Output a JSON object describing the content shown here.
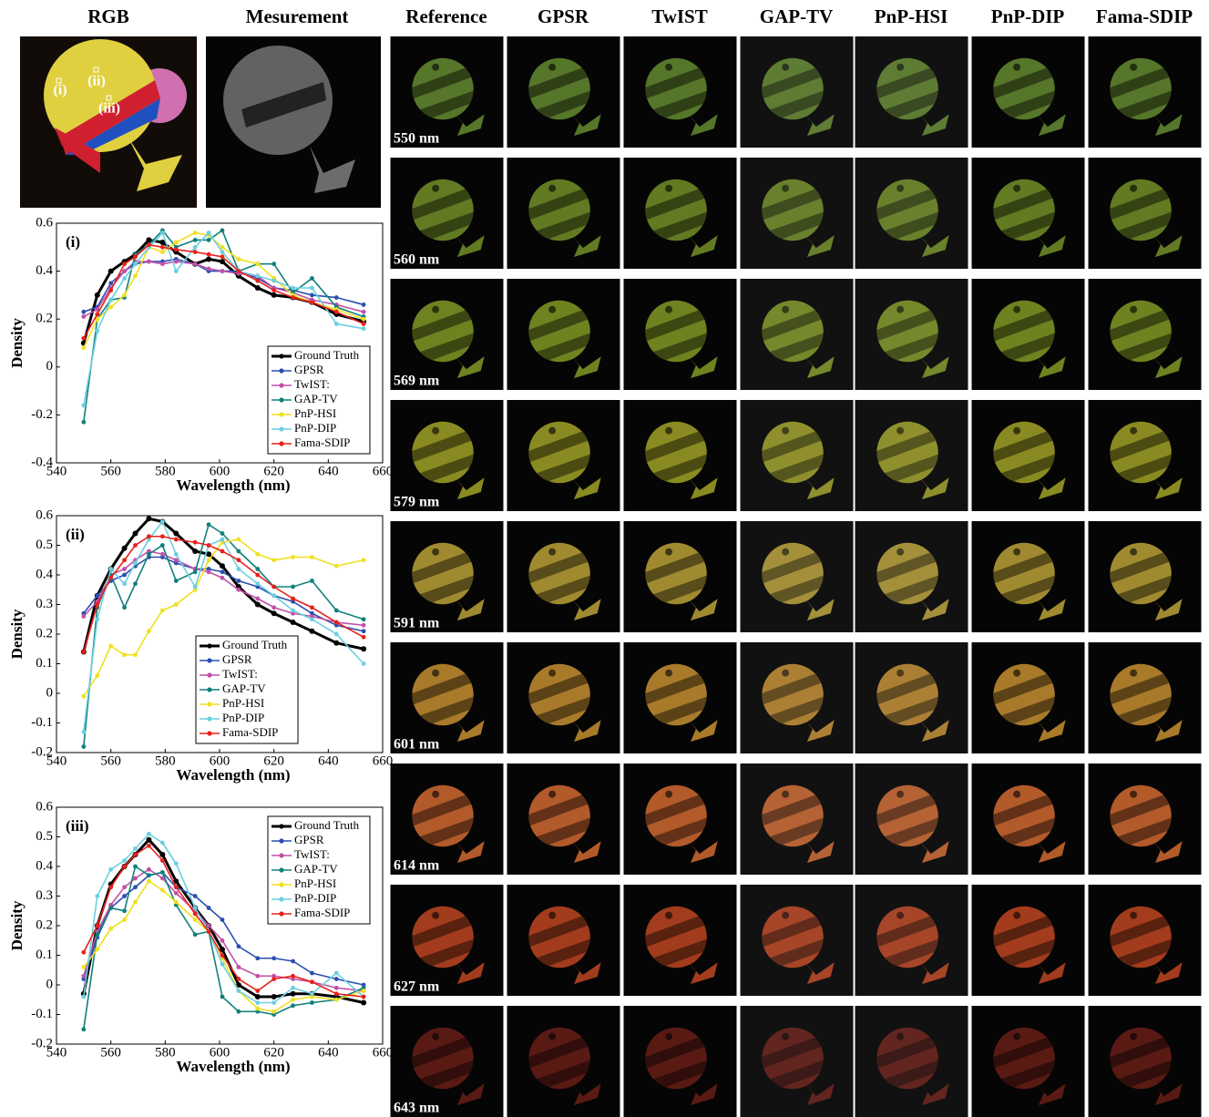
{
  "headers": {
    "rgb": "RGB",
    "measurement": "Mesurement",
    "methods": [
      "Reference",
      "GPSR",
      "TwIST",
      "GAP-TV",
      "PnP-HSI",
      "PnP-DIP",
      "Fama-SDIP"
    ]
  },
  "markers": [
    "(i)",
    "(ii)",
    "(iii)"
  ],
  "rows": [
    {
      "label": "550 nm",
      "color": "#56762a"
    },
    {
      "label": "560 nm",
      "color": "#627a22"
    },
    {
      "label": "569 nm",
      "color": "#6e8220"
    },
    {
      "label": "579 nm",
      "color": "#8a8a22"
    },
    {
      "label": "591 nm",
      "color": "#a08a30"
    },
    {
      "label": "601 nm",
      "color": "#a87a2a"
    },
    {
      "label": "614 nm",
      "color": "#b25a2a"
    },
    {
      "label": "627 nm",
      "color": "#a23c1c"
    },
    {
      "label": "643 nm",
      "color": "#5a1a14"
    }
  ],
  "chart_data": [
    {
      "type": "line",
      "label": "(i)",
      "xlabel": "Wavelength (nm)",
      "ylabel": "Density",
      "legend": "lower right",
      "x": [
        550,
        555,
        560,
        565,
        569,
        574,
        579,
        584,
        591,
        596,
        601,
        607,
        614,
        620,
        627,
        634,
        643,
        653
      ],
      "xlim": [
        540,
        660
      ],
      "xticks": [
        540,
        560,
        580,
        600,
        620,
        640,
        660
      ],
      "ylim": [
        -0.4,
        0.6
      ],
      "yticks": [
        -0.4,
        -0.2,
        0,
        0.2,
        0.4,
        0.6
      ],
      "series": [
        {
          "name": "Ground Truth",
          "color": "#000000",
          "values": [
            0.1,
            0.3,
            0.4,
            0.44,
            0.47,
            0.53,
            0.52,
            0.48,
            0.43,
            0.45,
            0.44,
            0.38,
            0.33,
            0.3,
            0.29,
            0.27,
            0.22,
            0.19
          ]
        },
        {
          "name": "GPSR",
          "color": "#2b4fb0",
          "values": [
            0.23,
            0.25,
            0.35,
            0.4,
            0.43,
            0.44,
            0.44,
            0.45,
            0.43,
            0.4,
            0.4,
            0.4,
            0.37,
            0.33,
            0.32,
            0.3,
            0.29,
            0.26
          ]
        },
        {
          "name": "TwIST:",
          "color": "#c050a8",
          "values": [
            0.21,
            0.24,
            0.33,
            0.4,
            0.44,
            0.44,
            0.43,
            0.44,
            0.43,
            0.41,
            0.4,
            0.39,
            0.38,
            0.33,
            0.31,
            0.28,
            0.26,
            0.23
          ]
        },
        {
          "name": "GAP-TV",
          "color": "#11807a",
          "values": [
            -0.23,
            0.2,
            0.28,
            0.29,
            0.47,
            0.51,
            0.57,
            0.5,
            0.53,
            0.53,
            0.57,
            0.4,
            0.43,
            0.43,
            0.31,
            0.37,
            0.25,
            0.21
          ]
        },
        {
          "name": "PnP-HSI",
          "color": "#f0e020",
          "values": [
            0.08,
            0.2,
            0.25,
            0.3,
            0.38,
            0.5,
            0.48,
            0.52,
            0.56,
            0.55,
            0.5,
            0.45,
            0.43,
            0.37,
            0.3,
            0.27,
            0.24,
            0.2
          ]
        },
        {
          "name": "PnP-DIP",
          "color": "#6ccfe0",
          "values": [
            -0.16,
            0.15,
            0.28,
            0.37,
            0.43,
            0.5,
            0.56,
            0.4,
            0.5,
            0.56,
            0.48,
            0.4,
            0.38,
            0.36,
            0.33,
            0.33,
            0.18,
            0.16
          ]
        },
        {
          "name": "Fama-SDIP",
          "color": "#e8201c",
          "values": [
            0.12,
            0.22,
            0.32,
            0.43,
            0.46,
            0.51,
            0.5,
            0.49,
            0.48,
            0.47,
            0.46,
            0.4,
            0.36,
            0.32,
            0.29,
            0.27,
            0.23,
            0.18
          ]
        }
      ]
    },
    {
      "type": "line",
      "label": "(ii)",
      "xlabel": "Wavelength (nm)",
      "ylabel": "Density",
      "legend": "lower center",
      "x": [
        550,
        555,
        560,
        565,
        569,
        574,
        579,
        584,
        591,
        596,
        601,
        607,
        614,
        620,
        627,
        634,
        643,
        653
      ],
      "xlim": [
        540,
        660
      ],
      "xticks": [
        540,
        560,
        580,
        600,
        620,
        640,
        660
      ],
      "ylim": [
        -0.2,
        0.6
      ],
      "yticks": [
        -0.2,
        -0.1,
        0,
        0.1,
        0.2,
        0.3,
        0.4,
        0.5,
        0.6
      ],
      "series": [
        {
          "name": "Ground Truth",
          "color": "#000000",
          "values": [
            0.14,
            0.33,
            0.42,
            0.49,
            0.54,
            0.59,
            0.58,
            0.54,
            0.48,
            0.47,
            0.43,
            0.36,
            0.3,
            0.27,
            0.24,
            0.21,
            0.17,
            0.15
          ]
        },
        {
          "name": "GPSR",
          "color": "#2b4fb0",
          "values": [
            0.27,
            0.33,
            0.38,
            0.4,
            0.43,
            0.46,
            0.46,
            0.44,
            0.42,
            0.42,
            0.41,
            0.38,
            0.36,
            0.33,
            0.31,
            0.27,
            0.23,
            0.21
          ]
        },
        {
          "name": "TwIST:",
          "color": "#c050a8",
          "values": [
            0.26,
            0.31,
            0.4,
            0.42,
            0.45,
            0.48,
            0.47,
            0.45,
            0.42,
            0.41,
            0.39,
            0.35,
            0.32,
            0.29,
            0.27,
            0.26,
            0.24,
            0.23
          ]
        },
        {
          "name": "GAP-TV",
          "color": "#11807a",
          "values": [
            -0.18,
            0.29,
            0.4,
            0.29,
            0.37,
            0.47,
            0.5,
            0.38,
            0.41,
            0.57,
            0.54,
            0.48,
            0.42,
            0.36,
            0.36,
            0.38,
            0.28,
            0.25
          ]
        },
        {
          "name": "PnP-HSI",
          "color": "#f0e020",
          "values": [
            -0.01,
            0.06,
            0.16,
            0.13,
            0.13,
            0.21,
            0.28,
            0.3,
            0.35,
            0.45,
            0.51,
            0.52,
            0.47,
            0.45,
            0.46,
            0.46,
            0.43,
            0.45
          ]
        },
        {
          "name": "PnP-DIP",
          "color": "#6ccfe0",
          "values": [
            -0.13,
            0.25,
            0.42,
            0.37,
            0.44,
            0.52,
            0.58,
            0.47,
            0.36,
            0.5,
            0.52,
            0.42,
            0.37,
            0.33,
            0.28,
            0.25,
            0.2,
            0.1
          ]
        },
        {
          "name": "Fama-SDIP",
          "color": "#e8201c",
          "values": [
            0.14,
            0.3,
            0.39,
            0.45,
            0.5,
            0.53,
            0.53,
            0.52,
            0.51,
            0.5,
            0.48,
            0.45,
            0.4,
            0.36,
            0.32,
            0.29,
            0.24,
            0.19
          ]
        }
      ]
    },
    {
      "type": "line",
      "label": "(iii)",
      "xlabel": "Wavelength (nm)",
      "ylabel": "Density",
      "legend": "upper right",
      "x": [
        550,
        555,
        560,
        565,
        569,
        574,
        579,
        584,
        591,
        596,
        601,
        607,
        614,
        620,
        627,
        634,
        643,
        653
      ],
      "xlim": [
        540,
        660
      ],
      "xticks": [
        540,
        560,
        580,
        600,
        620,
        640,
        660
      ],
      "ylim": [
        -0.2,
        0.6
      ],
      "yticks": [
        -0.2,
        -0.1,
        0,
        0.1,
        0.2,
        0.3,
        0.4,
        0.5,
        0.6
      ],
      "series": [
        {
          "name": "Ground Truth",
          "color": "#000000",
          "values": [
            -0.03,
            0.2,
            0.34,
            0.4,
            0.44,
            0.49,
            0.44,
            0.35,
            0.26,
            0.2,
            0.12,
            0.0,
            -0.04,
            -0.04,
            -0.03,
            -0.03,
            -0.04,
            -0.06
          ]
        },
        {
          "name": "GPSR",
          "color": "#2b4fb0",
          "values": [
            0.02,
            0.16,
            0.26,
            0.3,
            0.33,
            0.37,
            0.38,
            0.33,
            0.3,
            0.26,
            0.22,
            0.13,
            0.09,
            0.09,
            0.08,
            0.04,
            0.02,
            0.0
          ]
        },
        {
          "name": "TwIST:",
          "color": "#c050a8",
          "values": [
            0.03,
            0.18,
            0.27,
            0.33,
            0.36,
            0.39,
            0.36,
            0.31,
            0.25,
            0.2,
            0.15,
            0.06,
            0.03,
            0.03,
            0.02,
            0.01,
            -0.01,
            -0.02
          ]
        },
        {
          "name": "GAP-TV",
          "color": "#11807a",
          "values": [
            -0.15,
            0.17,
            0.26,
            0.25,
            0.4,
            0.37,
            0.38,
            0.27,
            0.17,
            0.18,
            -0.04,
            -0.09,
            -0.09,
            -0.1,
            -0.07,
            -0.06,
            -0.05,
            -0.01
          ]
        },
        {
          "name": "PnP-HSI",
          "color": "#f0e020",
          "values": [
            0.06,
            0.12,
            0.19,
            0.22,
            0.28,
            0.35,
            0.32,
            0.28,
            0.22,
            0.18,
            0.09,
            -0.02,
            -0.08,
            -0.09,
            -0.05,
            -0.04,
            -0.05,
            -0.02
          ]
        },
        {
          "name": "PnP-DIP",
          "color": "#6ccfe0",
          "values": [
            -0.04,
            0.3,
            0.39,
            0.42,
            0.46,
            0.51,
            0.48,
            0.41,
            0.26,
            0.18,
            0.07,
            -0.02,
            -0.06,
            -0.06,
            -0.01,
            -0.03,
            0.04,
            -0.04
          ]
        },
        {
          "name": "Fama-SDIP",
          "color": "#e8201c",
          "values": [
            0.11,
            0.2,
            0.33,
            0.4,
            0.44,
            0.47,
            0.42,
            0.33,
            0.24,
            0.18,
            0.1,
            0.02,
            -0.02,
            0.02,
            0.03,
            0.01,
            -0.03,
            -0.04
          ]
        }
      ]
    }
  ]
}
